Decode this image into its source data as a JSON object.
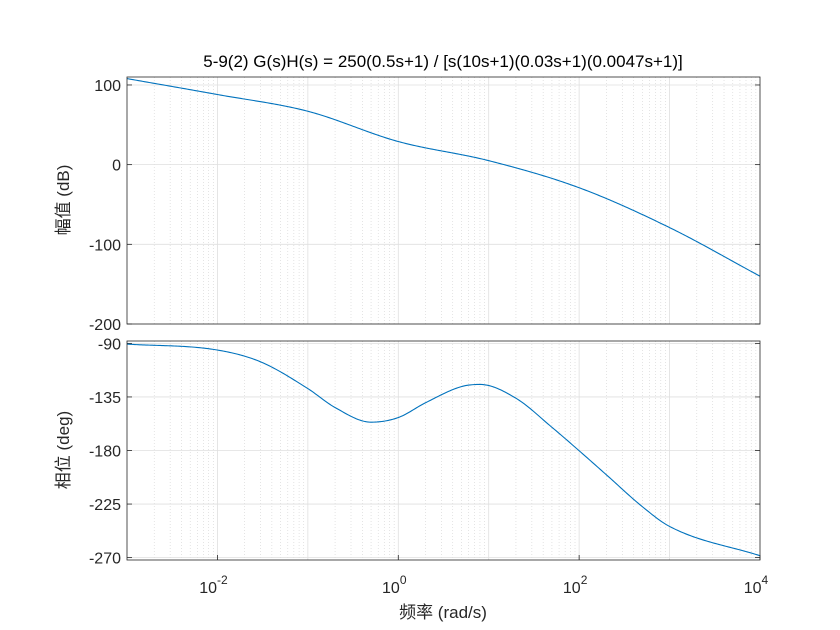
{
  "chart_data": [
    {
      "type": "line",
      "title": "5-9(2) G(s)H(s) = 250(0.5s+1) / [s(10s+1)(0.03s+1)(0.0047s+1)]",
      "xlabel": "",
      "ylabel": "幅值 (dB)",
      "xscale": "log",
      "xlim": [
        0.001,
        10000
      ],
      "ylim": [
        -200,
        110
      ],
      "yticks": [
        100,
        0,
        -100,
        -200
      ],
      "yticklabels": [
        "100",
        "0",
        "-100",
        "-200"
      ],
      "grid": true,
      "series": [
        {
          "color": "#0072bd",
          "x": [
            0.001,
            0.01,
            0.1,
            1,
            10,
            100,
            1000,
            10000
          ],
          "y": [
            108,
            88,
            67,
            29,
            5,
            -29,
            -79,
            -140
          ]
        }
      ]
    },
    {
      "type": "line",
      "title": "",
      "xlabel": "频率  (rad/s)",
      "ylabel": "相位 (deg)",
      "xscale": "log",
      "xlim": [
        0.001,
        10000
      ],
      "ylim": [
        -272,
        -88
      ],
      "yticks": [
        -90,
        -135,
        -180,
        -225,
        -270
      ],
      "yticklabels": [
        "-90",
        "-135",
        "-180",
        "-225",
        "-270"
      ],
      "xticks": [
        0.01,
        1,
        100,
        10000
      ],
      "xticklabels": [
        [
          "10",
          "-2"
        ],
        [
          "10",
          "0"
        ],
        [
          "10",
          "2"
        ],
        [
          "10",
          "4"
        ]
      ],
      "grid": true,
      "series": [
        {
          "color": "#0072bd",
          "x": [
            0.001,
            0.01,
            0.03,
            0.1,
            0.2,
            0.5,
            1,
            2,
            5,
            8,
            20,
            50,
            100,
            200,
            500,
            1000,
            10000
          ],
          "y": [
            -90.6,
            -95.6,
            -105.5,
            -128,
            -143.9,
            -156.2,
            -152.3,
            -139.9,
            -126.3,
            -124.5,
            -136.1,
            -160.5,
            -180.2,
            -200.4,
            -227.2,
            -243.8,
            -268.4
          ]
        }
      ]
    }
  ]
}
